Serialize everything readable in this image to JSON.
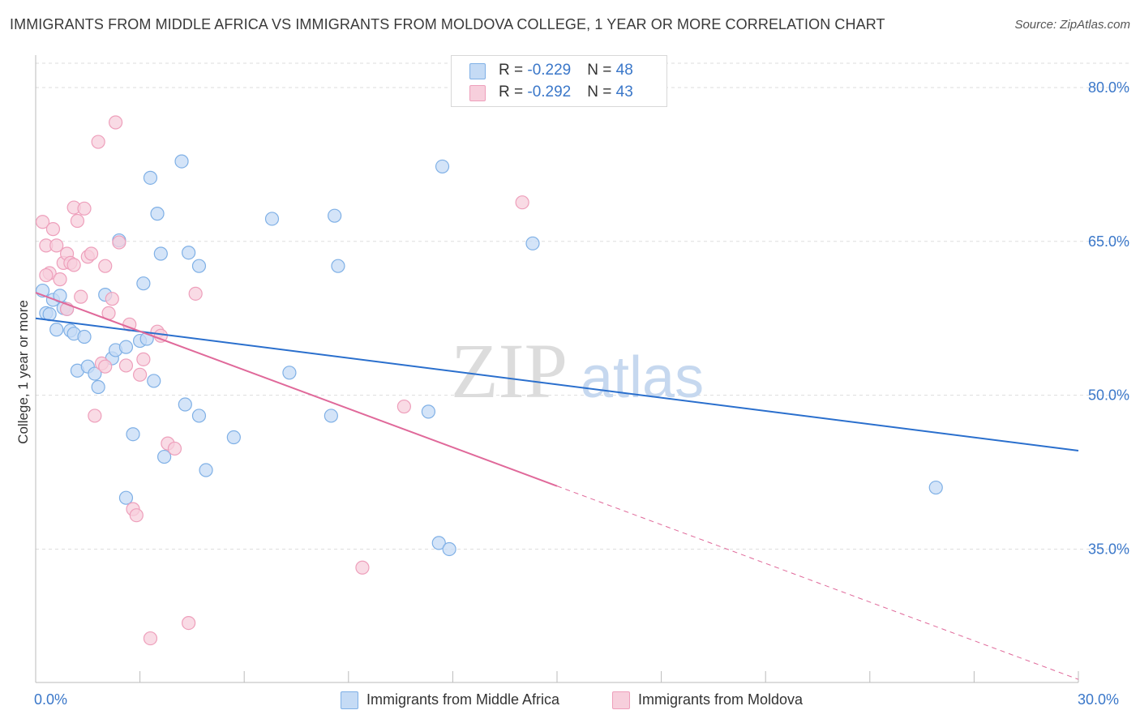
{
  "chart_data": {
    "type": "scatter",
    "title": "IMMIGRANTS FROM MIDDLE AFRICA VS IMMIGRANTS FROM MOLDOVA COLLEGE, 1 YEAR OR MORE CORRELATION CHART",
    "source": "Source: ZipAtlas.com",
    "ylabel": "College, 1 year or more",
    "xlabel": "",
    "xlim": [
      0,
      30
    ],
    "ylim": [
      22,
      83
    ],
    "x_tick_labels": {
      "min": "0.0%",
      "max": "30.0%"
    },
    "y_ticks": [
      80,
      65,
      50,
      35
    ],
    "y_tick_labels": [
      "80.0%",
      "65.0%",
      "50.0%",
      "35.0%"
    ],
    "grid": true,
    "watermark": {
      "zip": "ZIP",
      "atlas": "atlas"
    },
    "legend": {
      "position": "top-center",
      "entries": [
        {
          "r_label": "R = ",
          "r_value": "-0.229",
          "n_label": "N = ",
          "n_value": "48"
        },
        {
          "r_label": "R = ",
          "r_value": "-0.292",
          "n_label": "N = ",
          "n_value": "43"
        }
      ]
    },
    "series": [
      {
        "name": "Immigrants from Middle Africa",
        "color": "#7fb0e6",
        "fill": "#c5dbf5",
        "line_color": "#2a6fcd",
        "trend": {
          "x0": 0,
          "y0": 57.5,
          "x1": 30,
          "y1": 44.6,
          "dashed_from": null
        },
        "points": [
          [
            0.2,
            60.2
          ],
          [
            0.3,
            58.0
          ],
          [
            0.4,
            57.9
          ],
          [
            0.5,
            59.3
          ],
          [
            0.6,
            56.4
          ],
          [
            0.8,
            58.5
          ],
          [
            1.0,
            56.3
          ],
          [
            1.1,
            56.0
          ],
          [
            1.2,
            52.4
          ],
          [
            1.4,
            55.7
          ],
          [
            1.5,
            52.8
          ],
          [
            1.7,
            52.1
          ],
          [
            1.8,
            50.8
          ],
          [
            2.0,
            59.8
          ],
          [
            2.2,
            53.6
          ],
          [
            2.3,
            54.4
          ],
          [
            2.4,
            65.1
          ],
          [
            2.6,
            54.7
          ],
          [
            2.6,
            40.0
          ],
          [
            2.8,
            46.2
          ],
          [
            3.0,
            55.3
          ],
          [
            3.1,
            60.9
          ],
          [
            3.2,
            55.5
          ],
          [
            3.3,
            71.2
          ],
          [
            3.4,
            51.4
          ],
          [
            3.5,
            67.7
          ],
          [
            3.6,
            63.8
          ],
          [
            3.7,
            44.0
          ],
          [
            4.2,
            72.8
          ],
          [
            4.3,
            49.1
          ],
          [
            4.4,
            63.9
          ],
          [
            4.7,
            48.0
          ],
          [
            4.7,
            62.6
          ],
          [
            4.9,
            42.7
          ],
          [
            5.7,
            45.9
          ],
          [
            6.8,
            67.2
          ],
          [
            7.3,
            52.2
          ],
          [
            8.5,
            48.0
          ],
          [
            8.6,
            67.5
          ],
          [
            8.7,
            62.6
          ],
          [
            11.3,
            48.4
          ],
          [
            11.6,
            35.6
          ],
          [
            11.7,
            72.3
          ],
          [
            11.9,
            35.0
          ],
          [
            14.3,
            64.8
          ],
          [
            25.9,
            41.0
          ],
          [
            0.7,
            59.7
          ],
          [
            0.9,
            58.4
          ]
        ]
      },
      {
        "name": "Immigrants from Moldova",
        "color": "#ee9fbb",
        "fill": "#f7cfdc",
        "line_color": "#e0699a",
        "trend": {
          "x0": 0,
          "y0": 60.0,
          "x1": 30,
          "y1": 22.3,
          "dashed_from": 15
        },
        "points": [
          [
            0.2,
            66.9
          ],
          [
            0.3,
            64.6
          ],
          [
            0.4,
            61.9
          ],
          [
            0.5,
            66.2
          ],
          [
            0.6,
            64.6
          ],
          [
            0.7,
            61.3
          ],
          [
            0.8,
            62.9
          ],
          [
            0.9,
            63.8
          ],
          [
            1.0,
            62.9
          ],
          [
            1.1,
            68.3
          ],
          [
            1.2,
            67.0
          ],
          [
            1.3,
            59.6
          ],
          [
            1.4,
            68.2
          ],
          [
            1.5,
            63.5
          ],
          [
            1.6,
            63.8
          ],
          [
            1.7,
            48.0
          ],
          [
            1.8,
            74.7
          ],
          [
            1.9,
            53.1
          ],
          [
            2.0,
            62.6
          ],
          [
            2.1,
            58.0
          ],
          [
            2.2,
            59.4
          ],
          [
            2.3,
            76.6
          ],
          [
            2.4,
            64.9
          ],
          [
            2.6,
            52.9
          ],
          [
            2.7,
            56.9
          ],
          [
            2.8,
            38.9
          ],
          [
            2.9,
            38.3
          ],
          [
            3.0,
            52.0
          ],
          [
            3.1,
            53.5
          ],
          [
            3.3,
            26.3
          ],
          [
            3.5,
            56.2
          ],
          [
            3.6,
            55.8
          ],
          [
            3.8,
            45.3
          ],
          [
            4.0,
            44.8
          ],
          [
            4.4,
            27.8
          ],
          [
            4.6,
            59.9
          ],
          [
            10.6,
            48.9
          ],
          [
            14.0,
            68.8
          ],
          [
            9.4,
            33.2
          ],
          [
            0.9,
            58.4
          ],
          [
            2.0,
            52.8
          ],
          [
            0.3,
            61.7
          ],
          [
            1.1,
            62.7
          ]
        ]
      }
    ]
  },
  "legend_bottom": [
    {
      "label": "Immigrants from Middle Africa"
    },
    {
      "label": "Immigrants from Moldova"
    }
  ]
}
